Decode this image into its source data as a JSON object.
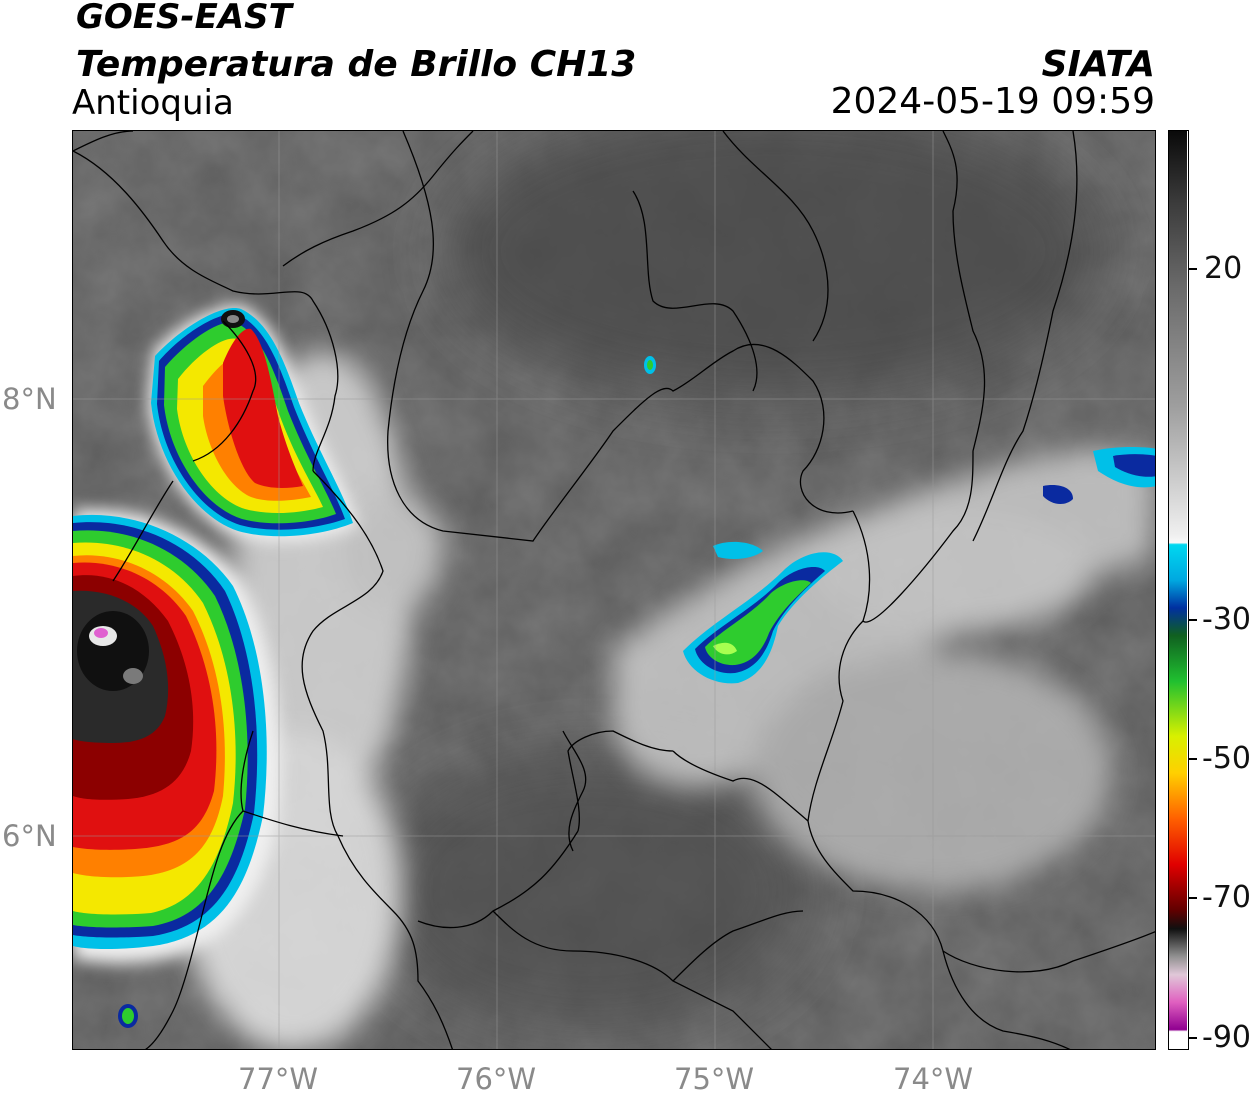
{
  "header": {
    "satellite": "GOES-EAST",
    "product": "Temperatura de Brillo CH13",
    "region": "Antioquia",
    "agency": "SIATA",
    "datetime": "2024-05-19 09:59"
  },
  "axes": {
    "lon_labels": [
      "77°W",
      "76°W",
      "75°W",
      "74°W"
    ],
    "lat_labels": [
      "8°N",
      "6°N"
    ]
  },
  "colorbar": {
    "tick_labels": [
      "20",
      "-30",
      "-50",
      "-70",
      "-90"
    ],
    "colors": {
      "warm_gray_top": "#111111",
      "mid_gray": "#808080",
      "white": "#f2f2f2",
      "cyan": "#00d8f0",
      "blue": "#0030a0",
      "green": "#20b030",
      "yellow": "#f0f000",
      "orange": "#ff8000",
      "red": "#e00000",
      "dark_red": "#400000",
      "magenta": "#e050c0",
      "purple": "#800090"
    }
  },
  "map_features": {
    "storm_colors": {
      "green": "#2ecc2e",
      "yellow": "#f4e800",
      "red": "#e01010",
      "cyan": "#00c0e8",
      "blue": "#0a2aa0",
      "black": "#101010",
      "magenta": "#e060d0"
    }
  }
}
